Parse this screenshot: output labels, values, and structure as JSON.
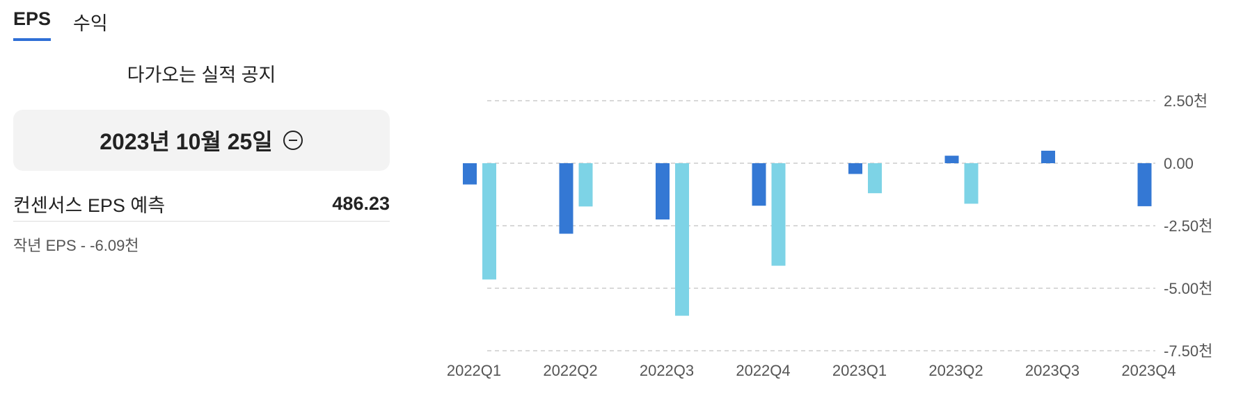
{
  "tabs": [
    {
      "label": "EPS",
      "active": true
    },
    {
      "label": "수익",
      "active": false
    }
  ],
  "upcoming": {
    "title": "다가오는 실적 공지",
    "date": "2023년 10월 25일"
  },
  "consensus": {
    "label": "컨센서스 EPS 예측",
    "value": "486.23"
  },
  "last_year": "작년 EPS - -6.09천",
  "colors": {
    "actual": "#3478d4",
    "estimate": "#7dd3e6",
    "grid": "#cccccc",
    "tab_accent": "#2f6fd6"
  },
  "chart_data": {
    "type": "bar",
    "categories": [
      "2022Q1",
      "2022Q2",
      "2022Q3",
      "2022Q4",
      "2023Q1",
      "2023Q2",
      "2023Q3",
      "2023Q4"
    ],
    "series": [
      {
        "values": [
          -850,
          -2820,
          -2250,
          -1700,
          -430,
          300,
          500,
          -1720
        ]
      },
      {
        "values": [
          -4650,
          -1730,
          -6100,
          -4100,
          -1200,
          -1620,
          null,
          null
        ]
      }
    ],
    "ylim": [
      -7500,
      2500
    ],
    "yticks": [
      2500,
      0,
      -2500,
      -5000,
      -7500
    ],
    "ytick_labels": [
      "2.50천",
      "0.00",
      "-2.50천",
      "-5.00천",
      "-7.50천"
    ],
    "grid": true,
    "yaxis_position": "right"
  }
}
